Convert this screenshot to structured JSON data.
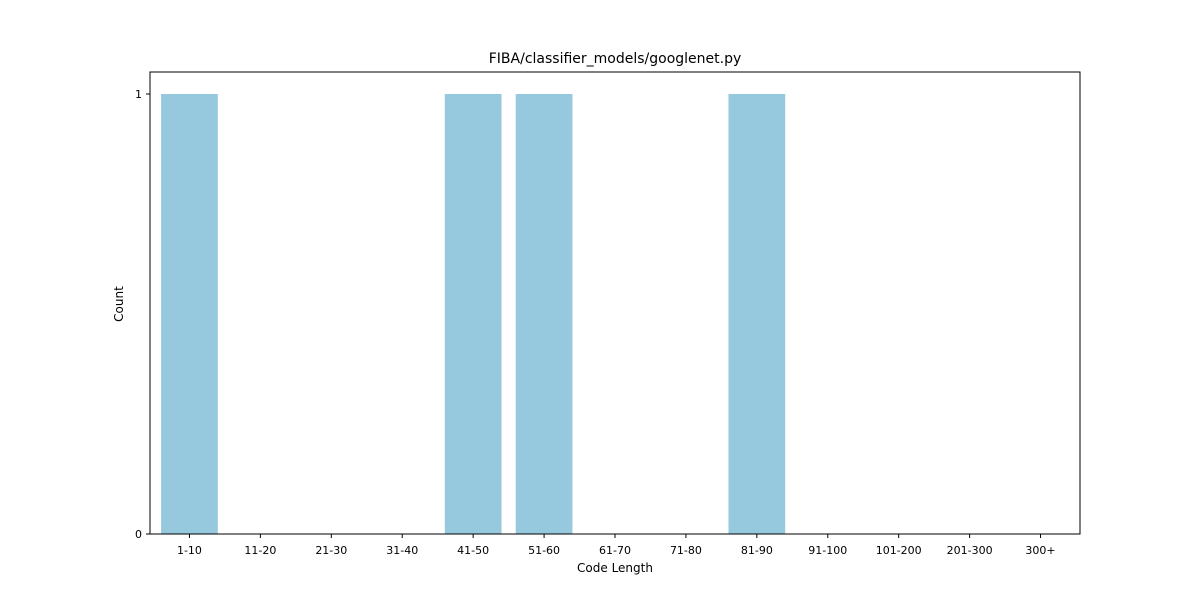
{
  "chart_data": {
    "type": "bar",
    "title": "FIBA/classifier_models/googlenet.py",
    "xlabel": "Code Length",
    "ylabel": "Count",
    "categories": [
      "1-10",
      "11-20",
      "21-30",
      "31-40",
      "41-50",
      "51-60",
      "61-70",
      "71-80",
      "81-90",
      "91-100",
      "101-200",
      "201-300",
      "300+"
    ],
    "values": [
      1,
      0,
      0,
      0,
      1,
      1,
      0,
      0,
      1,
      0,
      0,
      0,
      0
    ],
    "ylim": [
      0,
      1
    ],
    "yticks": [
      0,
      1
    ],
    "colors": {
      "bar": "#96c9de"
    },
    "grid": false,
    "legend": "none"
  }
}
